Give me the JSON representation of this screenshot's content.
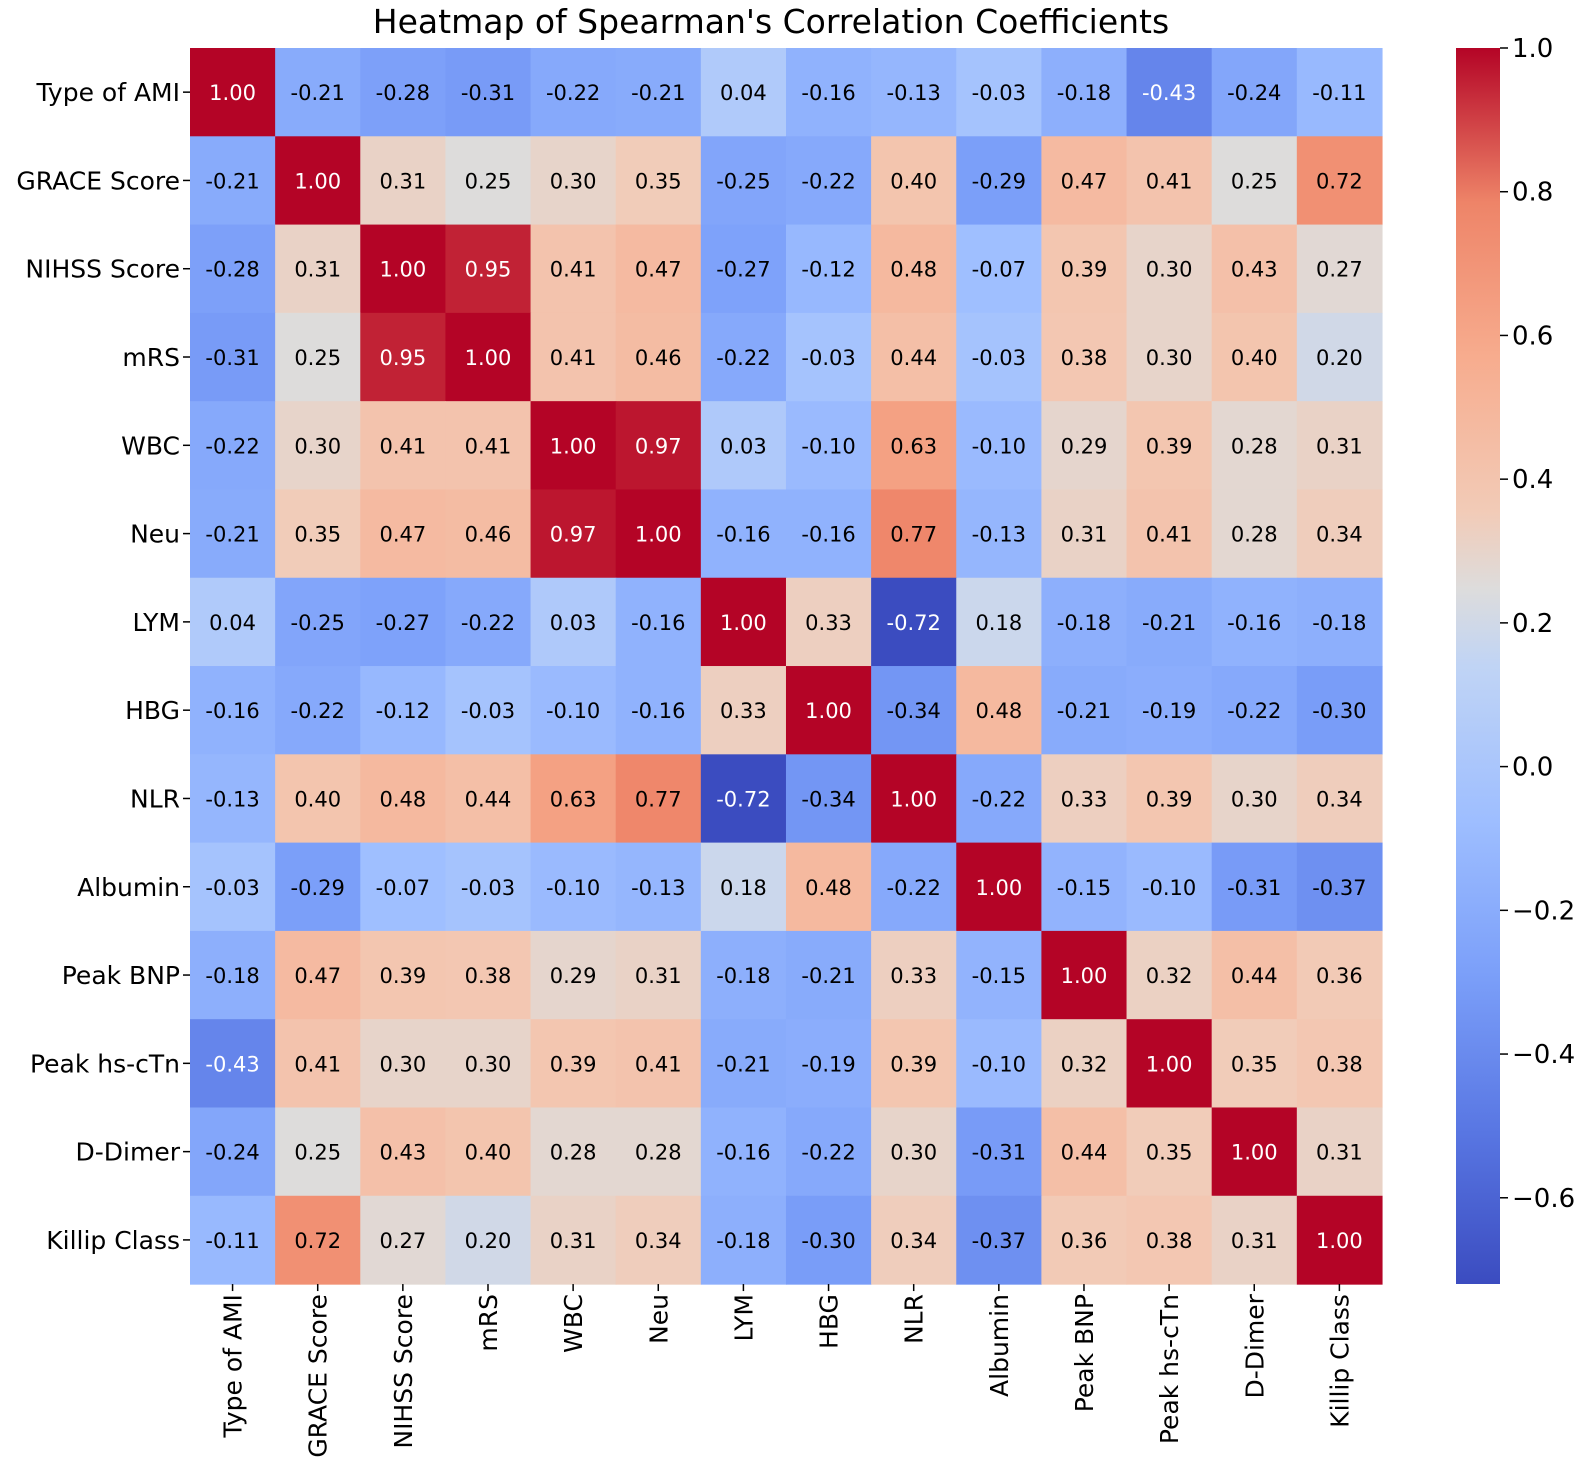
{
  "chart_data": {
    "type": "heatmap",
    "title": "Heatmap of Spearman's Correlation Coefficients",
    "xlabel": "",
    "ylabel": "",
    "labels": [
      "Type of AMI",
      "GRACE Score",
      "NIHSS Score",
      "mRS",
      "WBC",
      "Neu",
      "LYM",
      "HBG",
      "NLR",
      "Albumin",
      "Peak BNP",
      "Peak hs-cTn",
      "D-Dimer",
      "Killip Class"
    ],
    "matrix": [
      [
        1.0,
        -0.21,
        -0.28,
        -0.31,
        -0.22,
        -0.21,
        0.04,
        -0.16,
        -0.13,
        -0.03,
        -0.18,
        -0.43,
        -0.24,
        -0.11
      ],
      [
        -0.21,
        1.0,
        0.31,
        0.25,
        0.3,
        0.35,
        -0.25,
        -0.22,
        0.4,
        -0.29,
        0.47,
        0.41,
        0.25,
        0.72
      ],
      [
        -0.28,
        0.31,
        1.0,
        0.95,
        0.41,
        0.47,
        -0.27,
        -0.12,
        0.48,
        -0.07,
        0.39,
        0.3,
        0.43,
        0.27
      ],
      [
        -0.31,
        0.25,
        0.95,
        1.0,
        0.41,
        0.46,
        -0.22,
        -0.03,
        0.44,
        -0.03,
        0.38,
        0.3,
        0.4,
        0.2
      ],
      [
        -0.22,
        0.3,
        0.41,
        0.41,
        1.0,
        0.97,
        0.03,
        -0.1,
        0.63,
        -0.1,
        0.29,
        0.39,
        0.28,
        0.31
      ],
      [
        -0.21,
        0.35,
        0.47,
        0.46,
        0.97,
        1.0,
        -0.16,
        -0.16,
        0.77,
        -0.13,
        0.31,
        0.41,
        0.28,
        0.34
      ],
      [
        0.04,
        -0.25,
        -0.27,
        -0.22,
        0.03,
        -0.16,
        1.0,
        0.33,
        -0.72,
        0.18,
        -0.18,
        -0.21,
        -0.16,
        -0.18
      ],
      [
        -0.16,
        -0.22,
        -0.12,
        -0.03,
        -0.1,
        -0.16,
        0.33,
        1.0,
        -0.34,
        0.48,
        -0.21,
        -0.19,
        -0.22,
        -0.3
      ],
      [
        -0.13,
        0.4,
        0.48,
        0.44,
        0.63,
        0.77,
        -0.72,
        -0.34,
        1.0,
        -0.22,
        0.33,
        0.39,
        0.3,
        0.34
      ],
      [
        -0.03,
        -0.29,
        -0.07,
        -0.03,
        -0.1,
        -0.13,
        0.18,
        0.48,
        -0.22,
        1.0,
        -0.15,
        -0.1,
        -0.31,
        -0.37
      ],
      [
        -0.18,
        0.47,
        0.39,
        0.38,
        0.29,
        0.31,
        -0.18,
        -0.21,
        0.33,
        -0.15,
        1.0,
        0.32,
        0.44,
        0.36
      ],
      [
        -0.43,
        0.41,
        0.3,
        0.3,
        0.39,
        0.41,
        -0.21,
        -0.19,
        0.39,
        -0.1,
        0.32,
        1.0,
        0.35,
        0.38
      ],
      [
        -0.24,
        0.25,
        0.43,
        0.4,
        0.28,
        0.28,
        -0.16,
        -0.22,
        0.3,
        -0.31,
        0.44,
        0.35,
        1.0,
        0.31
      ],
      [
        -0.11,
        0.72,
        0.27,
        0.2,
        0.31,
        0.34,
        -0.18,
        -0.3,
        0.34,
        -0.37,
        0.36,
        0.38,
        0.31,
        1.0
      ]
    ],
    "value_format": "0.00",
    "colormap": "coolwarm",
    "vmin": -0.72,
    "vmax": 1.0,
    "colorbar": {
      "ticks": [
        1.0,
        0.8,
        0.6,
        0.4,
        0.2,
        0.0,
        -0.2,
        -0.4,
        -0.6
      ],
      "tick_labels": [
        "1.0",
        "0.8",
        "0.6",
        "0.4",
        "0.2",
        "0.0",
        "−0.2",
        "−0.4",
        "−0.6"
      ]
    }
  }
}
